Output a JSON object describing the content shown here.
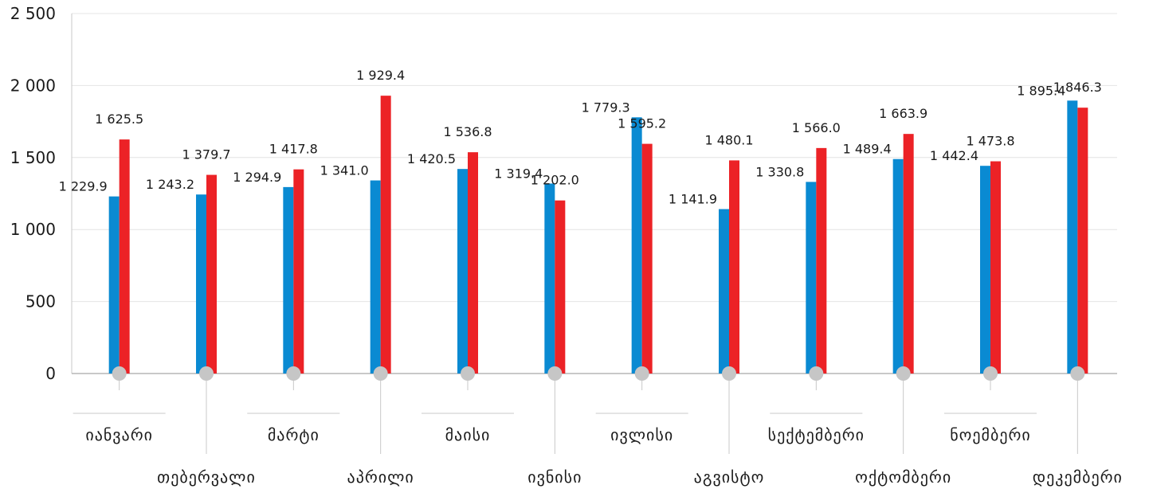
{
  "chart_data": {
    "type": "bar",
    "categories": [
      "იანვარი",
      "თებერვალი",
      "მარტი",
      "აპრილი",
      "მაისი",
      "ივნისი",
      "ივლისი",
      "აგვისტო",
      "სექტემბერი",
      "ოქტომბერი",
      "ნოემბერი",
      "დეკემბერი"
    ],
    "series": [
      {
        "values": [
          1229.9,
          1243.2,
          1294.9,
          1341.0,
          1420.5,
          1319.4,
          1779.3,
          1141.9,
          1330.8,
          1489.4,
          1442.4,
          1895.4
        ],
        "labels": [
          "1 229.9",
          "1 243.2",
          "1 294.9",
          "1 341.0",
          "1 420.5",
          "1 319.4",
          "1 779.3",
          "1 141.9",
          "1 330.8",
          "1 489.4",
          "1 442.4",
          "1 895.4"
        ],
        "color": "#0a8ad2"
      },
      {
        "values": [
          1625.5,
          1379.7,
          1417.8,
          1929.4,
          1536.8,
          1202.0,
          1595.2,
          1480.1,
          1566.0,
          1663.9,
          1473.8,
          1846.3
        ],
        "labels": [
          "1 625.5",
          "1 379.7",
          "1 417.8",
          "1 929.4",
          "1 536.8",
          "1 202.0",
          "1 595.2",
          "1 480.1",
          "1 566.0",
          "1 663.9",
          "1 473.8",
          "1 846.3"
        ],
        "color": "#ec2226"
      }
    ],
    "ylim": [
      0,
      2500
    ],
    "yticks": [
      0,
      500,
      1000,
      1500,
      2000,
      2500
    ],
    "ytick_labels": [
      "0",
      "500",
      "1 000",
      "1 500",
      "2 000",
      "2 500"
    ],
    "grid": true,
    "legend": "none"
  }
}
